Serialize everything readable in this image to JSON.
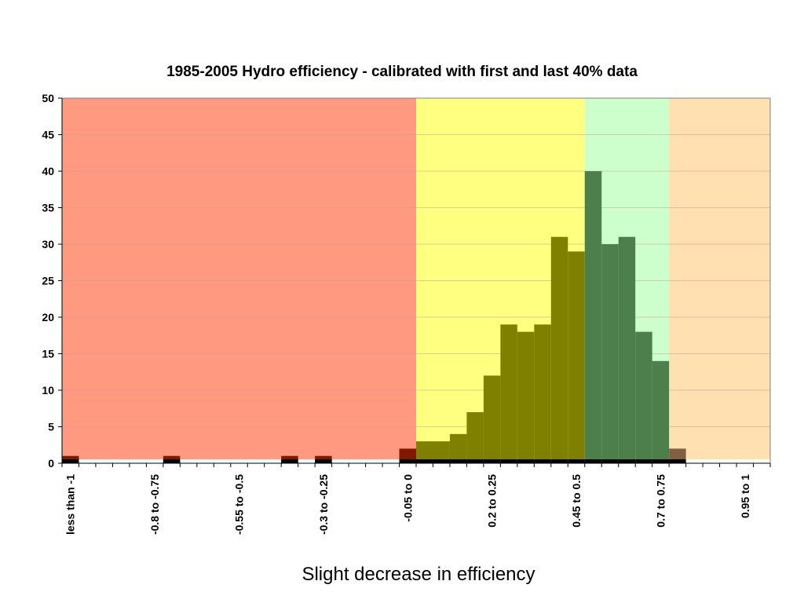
{
  "caption": "Slight decrease in efficiency",
  "chart_data": {
    "type": "bar",
    "title": "1985-2005 Hydro efficiency - calibrated with first and last 40% data",
    "xlabel": "",
    "ylabel": "",
    "ylim": [
      0,
      50
    ],
    "yticks": [
      0,
      5,
      10,
      15,
      20,
      25,
      30,
      35,
      40,
      45,
      50
    ],
    "grid": true,
    "bin_width": 0.05,
    "categories_start": -1.05,
    "tick_labels": [
      {
        "bin": 0,
        "label": "less than -1"
      },
      {
        "bin": 5,
        "label": "-0.8 to -0.75"
      },
      {
        "bin": 10,
        "label": "-0.55 to -0.5"
      },
      {
        "bin": 15,
        "label": "-0.3 to -0.25"
      },
      {
        "bin": 20,
        "label": "-0.05 to 0"
      },
      {
        "bin": 25,
        "label": "0.2 to 0.25"
      },
      {
        "bin": 30,
        "label": "0.45 to 0.5"
      },
      {
        "bin": 35,
        "label": "0.7 to 0.75"
      },
      {
        "bin": 40,
        "label": "0.95 to 1"
      }
    ],
    "values": [
      1,
      0,
      0,
      0,
      0,
      0,
      1,
      0,
      0,
      0,
      0,
      0,
      0,
      1,
      0,
      1,
      0,
      0,
      0,
      0,
      2,
      3,
      3,
      4,
      7,
      12,
      19,
      18,
      19,
      31,
      29,
      40,
      30,
      31,
      18,
      14,
      2,
      0,
      0,
      0,
      0,
      0
    ],
    "background_regions": [
      {
        "from_bin": 0,
        "to_bin": 21,
        "color": "#ff9980"
      },
      {
        "from_bin": 21,
        "to_bin": 31,
        "color": "#ffff80"
      },
      {
        "from_bin": 31,
        "to_bin": 36,
        "color": "#ccffcc"
      },
      {
        "from_bin": 36,
        "to_bin": 42,
        "color": "#ffe0b0"
      }
    ],
    "region_bar_colors": [
      "#7f1a00",
      "#808000",
      "#4c7f4c",
      "#806040"
    ]
  }
}
